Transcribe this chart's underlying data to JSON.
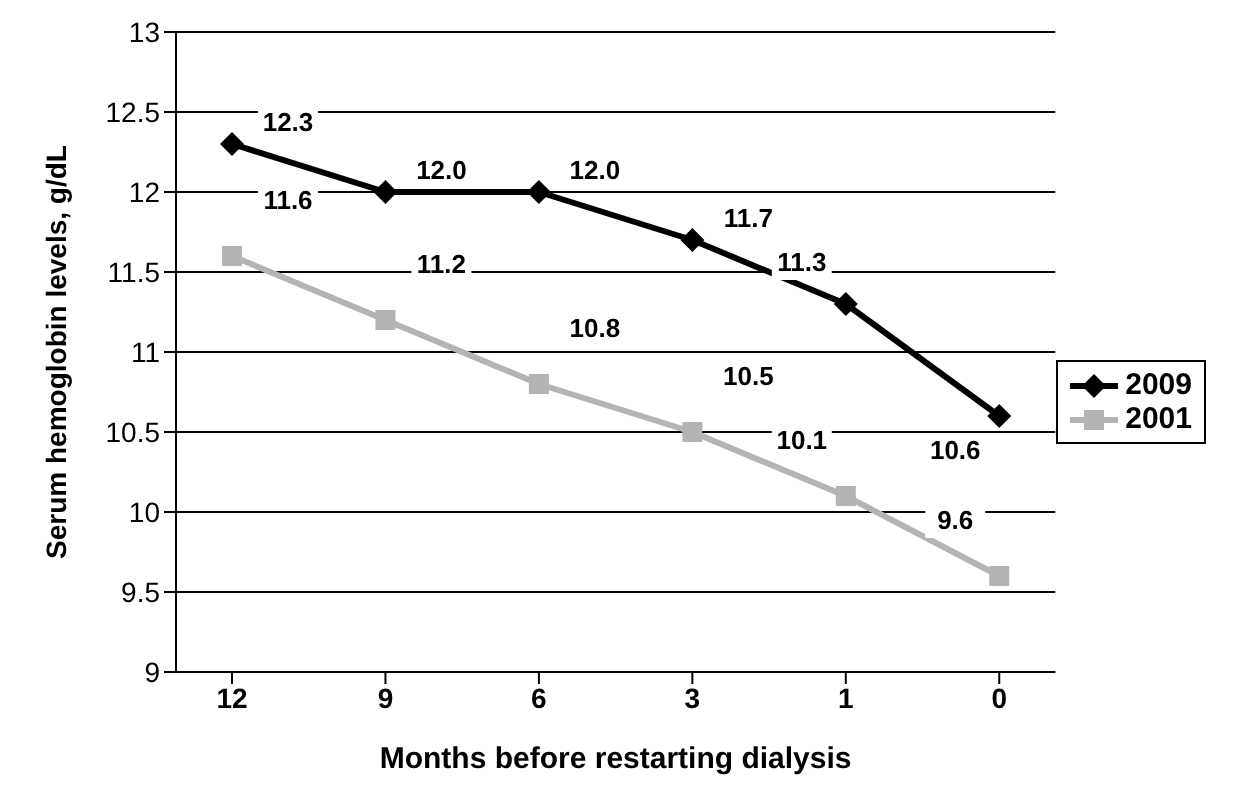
{
  "chart_data": {
    "type": "line",
    "xlabel": "Months before restarting dialysis",
    "ylabel": "Serum hemoglobin levels, g/dL",
    "categories": [
      "12",
      "9",
      "6",
      "3",
      "1",
      "0"
    ],
    "series": [
      {
        "name": "2009",
        "color": "#000000",
        "marker": "diamond",
        "values": [
          12.3,
          12.0,
          12.0,
          11.7,
          11.3,
          10.6
        ],
        "value_labels": [
          "12.3",
          "12.0",
          "12.0",
          "11.7",
          "11.3",
          "10.6"
        ]
      },
      {
        "name": "2001",
        "color": "#b4b4b4",
        "marker": "square",
        "values": [
          11.6,
          11.2,
          10.8,
          10.5,
          10.1,
          9.6
        ],
        "value_labels": [
          "11.6",
          "11.2",
          "10.8",
          "10.5",
          "10.1",
          "9.6"
        ]
      }
    ],
    "ylim": [
      9,
      13
    ],
    "yticks": [
      9,
      9.5,
      10,
      10.5,
      11,
      11.5,
      12,
      12.5,
      13
    ],
    "grid": "y",
    "legend": "right"
  }
}
